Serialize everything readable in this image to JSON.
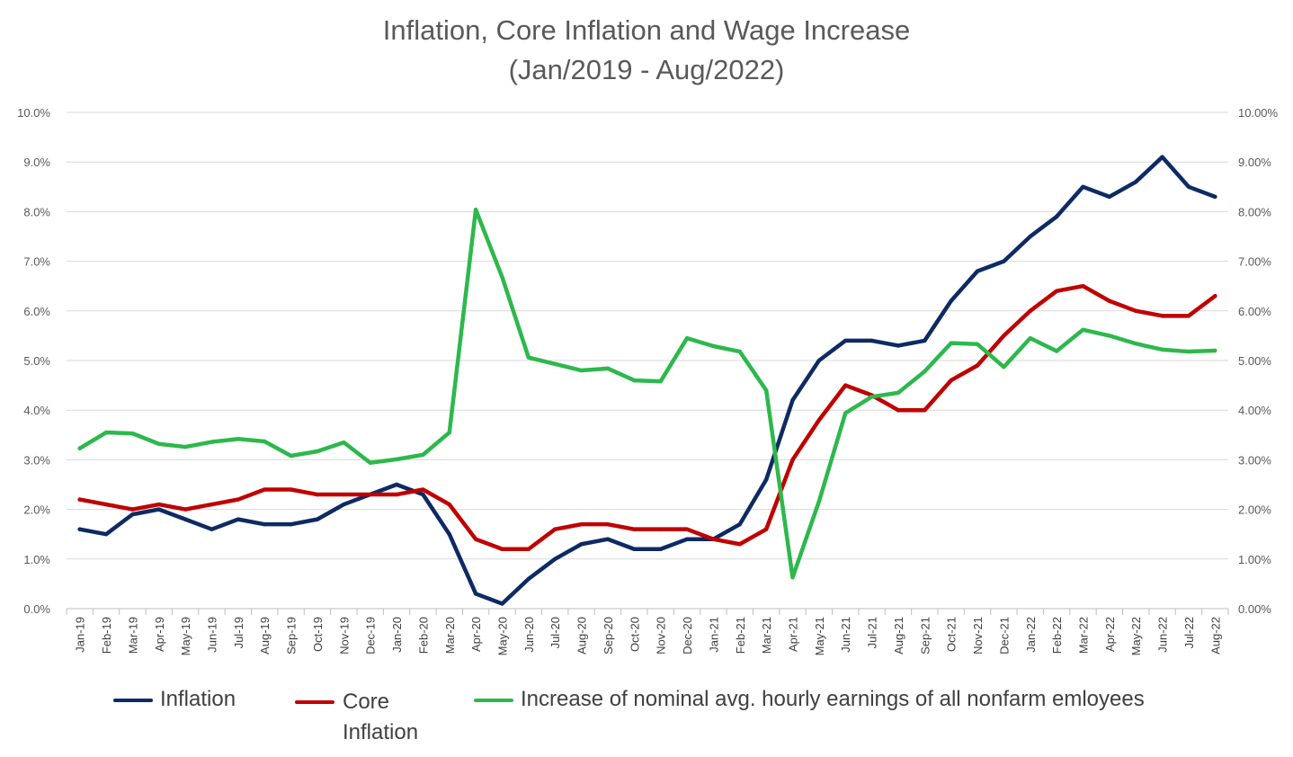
{
  "chart_data": {
    "type": "line",
    "title": "Inflation,  Core Inflation and Wage Increase",
    "subtitle": "(Jan/2019 - Aug/2022)",
    "categories": [
      "Jan-19",
      "Feb-19",
      "Mar-19",
      "Apr-19",
      "May-19",
      "Jun-19",
      "Jul-19",
      "Aug-19",
      "Sep-19",
      "Oct-19",
      "Nov-19",
      "Dec-19",
      "Jan-20",
      "Feb-20",
      "Mar-20",
      "Apr-20",
      "May-20",
      "Jun-20",
      "Jul-20",
      "Aug-20",
      "Sep-20",
      "Oct-20",
      "Nov-20",
      "Dec-20",
      "Jan-21",
      "Feb-21",
      "Mar-21",
      "Apr-21",
      "May-21",
      "Jun-21",
      "Jul-21",
      "Aug-21",
      "Sep-21",
      "Oct-21",
      "Nov-21",
      "Dec-21",
      "Jan-22",
      "Feb-22",
      "Mar-22",
      "Apr-22",
      "May-22",
      "Jun-22",
      "Jul-22",
      "Aug-22"
    ],
    "ylim": [
      0,
      10
    ],
    "left_ticks": [
      "0.0%",
      "1.0%",
      "2.0%",
      "3.0%",
      "4.0%",
      "5.0%",
      "6.0%",
      "7.0%",
      "8.0%",
      "9.0%",
      "10.0%"
    ],
    "right_ticks": [
      "0.00%",
      "1.00%",
      "2.00%",
      "3.00%",
      "4.00%",
      "5.00%",
      "6.00%",
      "7.00%",
      "8.00%",
      "9.00%",
      "10.00%"
    ],
    "grid": true,
    "legend_position": "bottom",
    "series": [
      {
        "name": "Inflation",
        "color": "#0d2a63",
        "values": [
          1.6,
          1.5,
          1.9,
          2.0,
          1.8,
          1.6,
          1.8,
          1.7,
          1.7,
          1.8,
          2.1,
          2.3,
          2.5,
          2.3,
          1.5,
          0.3,
          0.1,
          0.6,
          1.0,
          1.3,
          1.4,
          1.2,
          1.2,
          1.4,
          1.4,
          1.7,
          2.6,
          4.2,
          5.0,
          5.4,
          5.4,
          5.3,
          5.4,
          6.2,
          6.8,
          7.0,
          7.5,
          7.9,
          8.5,
          8.3,
          8.6,
          9.1,
          8.5,
          8.3
        ]
      },
      {
        "name": "Core\nInflation",
        "color": "#c00000",
        "values": [
          2.2,
          2.1,
          2.0,
          2.1,
          2.0,
          2.1,
          2.2,
          2.4,
          2.4,
          2.3,
          2.3,
          2.3,
          2.3,
          2.4,
          2.1,
          1.4,
          1.2,
          1.2,
          1.6,
          1.7,
          1.7,
          1.6,
          1.6,
          1.6,
          1.4,
          1.3,
          1.6,
          3.0,
          3.8,
          4.5,
          4.3,
          4.0,
          4.0,
          4.6,
          4.9,
          5.5,
          6.0,
          6.4,
          6.5,
          6.2,
          6.0,
          5.9,
          5.9,
          6.3
        ]
      },
      {
        "name": "Increase of nominal avg. hourly earnings of all nonfarm emloyees",
        "color": "#2db84c",
        "values": [
          3.23,
          3.55,
          3.53,
          3.32,
          3.26,
          3.36,
          3.42,
          3.37,
          3.08,
          3.17,
          3.35,
          2.94,
          3.01,
          3.1,
          3.55,
          8.04,
          6.68,
          5.06,
          4.93,
          4.8,
          4.84,
          4.6,
          4.58,
          5.45,
          5.29,
          5.18,
          4.4,
          0.63,
          2.16,
          3.94,
          4.27,
          4.35,
          4.78,
          5.35,
          5.33,
          4.87,
          5.45,
          5.19,
          5.62,
          5.5,
          5.34,
          5.22,
          5.18,
          5.2
        ]
      }
    ]
  }
}
